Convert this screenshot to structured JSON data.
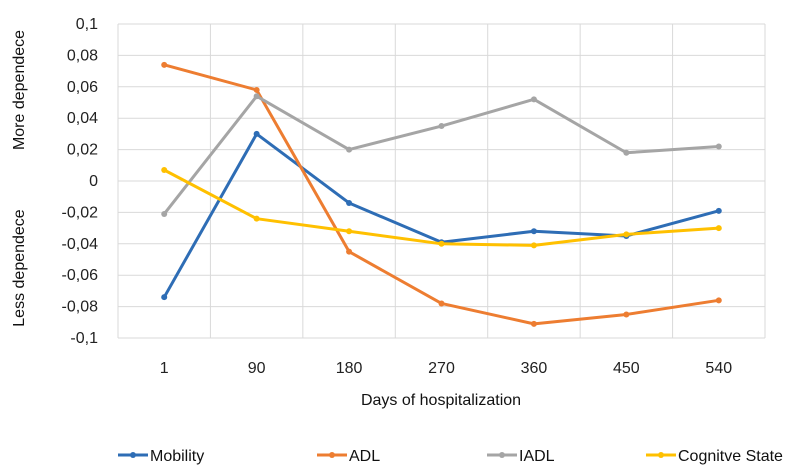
{
  "chart_data": {
    "type": "line",
    "categories": [
      "1",
      "90",
      "180",
      "270",
      "360",
      "450",
      "540"
    ],
    "xlabel": "Days of hospitalization",
    "ylabel_upper": "More dependece",
    "ylabel_lower": "Less dependece",
    "ylim": [
      -0.1,
      0.1
    ],
    "yticks": [
      "0,1",
      "0,08",
      "0,06",
      "0,04",
      "0,02",
      "0",
      "-0,02",
      "-0,04",
      "-0,06",
      "-0,08",
      "-0,1"
    ],
    "ytick_values": [
      0.1,
      0.08,
      0.06,
      0.04,
      0.02,
      0,
      -0.02,
      -0.04,
      -0.06,
      -0.08,
      -0.1
    ],
    "grid": true,
    "legend_position": "bottom",
    "series": [
      {
        "name": "Mobility",
        "color": "#2e6db5",
        "values": [
          -0.074,
          0.03,
          -0.014,
          -0.039,
          -0.032,
          -0.035,
          -0.019
        ]
      },
      {
        "name": "ADL",
        "color": "#ed7d31",
        "values": [
          0.074,
          0.058,
          -0.045,
          -0.078,
          -0.091,
          -0.085,
          -0.076
        ]
      },
      {
        "name": "IADL",
        "color": "#a5a5a5",
        "values": [
          -0.021,
          0.054,
          0.02,
          0.035,
          0.052,
          0.018,
          0.022
        ]
      },
      {
        "name": "Cognitve State",
        "color": "#ffc000",
        "values": [
          0.007,
          -0.024,
          -0.032,
          -0.04,
          -0.041,
          -0.034,
          -0.03
        ]
      }
    ]
  }
}
